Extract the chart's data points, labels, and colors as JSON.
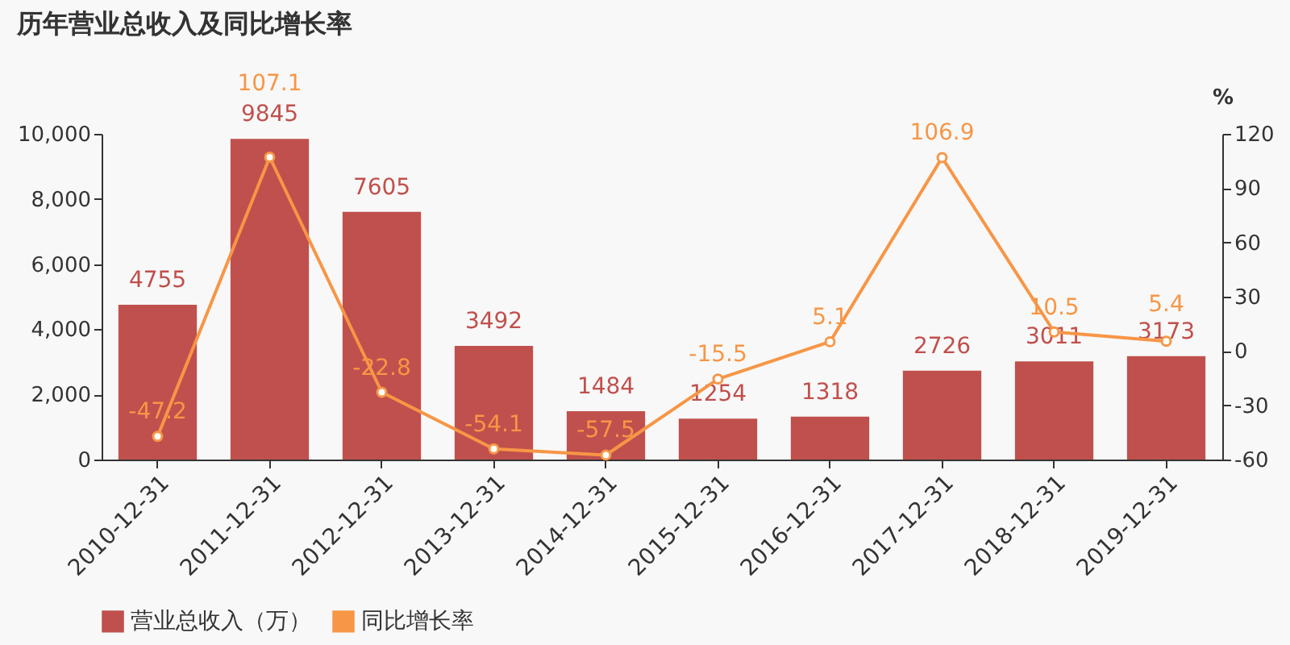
{
  "chart_data": {
    "type": "bar",
    "title": "历年营业总收入及同比增长率",
    "categories": [
      "2010-12-31",
      "2011-12-31",
      "2012-12-31",
      "2013-12-31",
      "2014-12-31",
      "2015-12-31",
      "2016-12-31",
      "2017-12-31",
      "2018-12-31",
      "2019-12-31"
    ],
    "series": [
      {
        "name": "营业总收入（万）",
        "color": "#c0504d",
        "values": [
          4755,
          9845,
          7605,
          3492,
          1484,
          1254,
          1318,
          2726,
          3011,
          3173
        ]
      },
      {
        "name": "同比增长率",
        "type": "line",
        "axis": "y2",
        "color": "#f79646",
        "values": [
          -47.2,
          107.1,
          -22.8,
          -54.1,
          -57.5,
          -15.5,
          5.1,
          106.9,
          10.5,
          5.4
        ]
      }
    ],
    "ylim": [
      0,
      10000
    ],
    "yticks": [
      0,
      {
        "value": 2000,
        "label": "2,000"
      },
      {
        "value": 4000,
        "label": "4,000"
      },
      {
        "value": 6000,
        "label": "6,000"
      },
      {
        "value": 8000,
        "label": "8,000"
      },
      {
        "value": 10000,
        "label": "10,000"
      }
    ],
    "y2lim": [
      -60,
      120
    ],
    "y2ticks": [
      -60,
      -30,
      0,
      30,
      60,
      90,
      120
    ],
    "y2label": "%",
    "marker": "circle",
    "data_labels": true,
    "legend": "bottom"
  }
}
